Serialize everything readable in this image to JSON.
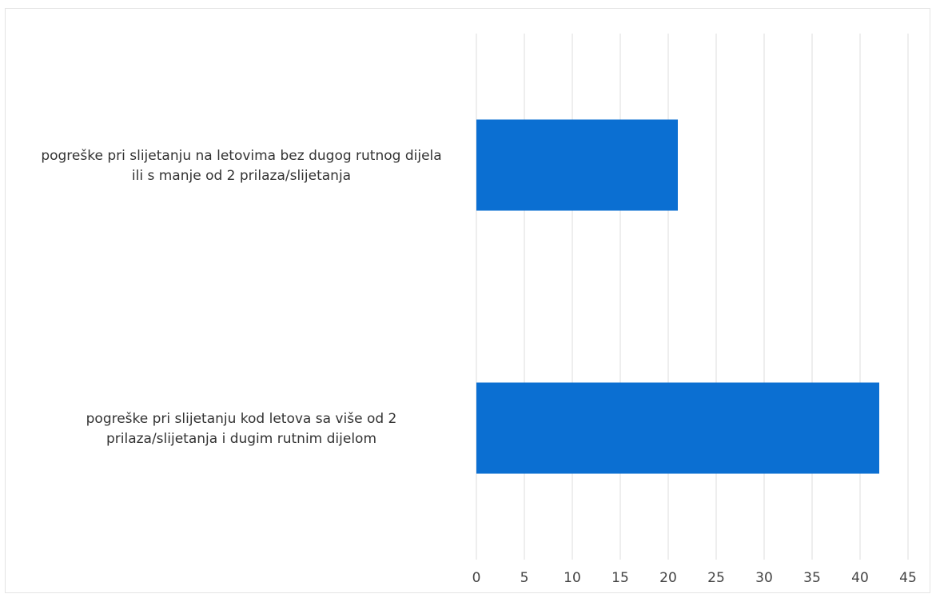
{
  "chart_data": {
    "type": "bar",
    "orientation": "horizontal",
    "categories": [
      "pogreške pri slijetanju na letovima bez dugog rutnog dijela ili s manje od 2 prilaza/slijetanja",
      "pogreške pri slijetanju kod letova sa više od 2 prilaza/slijetanja i dugim rutnim dijelom"
    ],
    "category_lines": [
      [
        "pogreške pri slijetanju na letovima bez dugog rutnog dijela",
        "ili s manje od 2 prilaza/slijetanja"
      ],
      [
        "pogreške pri slijetanju kod letova sa više od 2",
        "prilaza/slijetanja i dugim rutnim dijelom"
      ]
    ],
    "values": [
      21,
      42
    ],
    "xlim": [
      0,
      45
    ],
    "xticks": [
      "0",
      "5",
      "10",
      "15",
      "20",
      "25",
      "30",
      "35",
      "40",
      "45"
    ],
    "title": "",
    "xlabel": "",
    "ylabel": "",
    "grid": true,
    "legend": "none",
    "bar_color": "#0b6fd2"
  }
}
